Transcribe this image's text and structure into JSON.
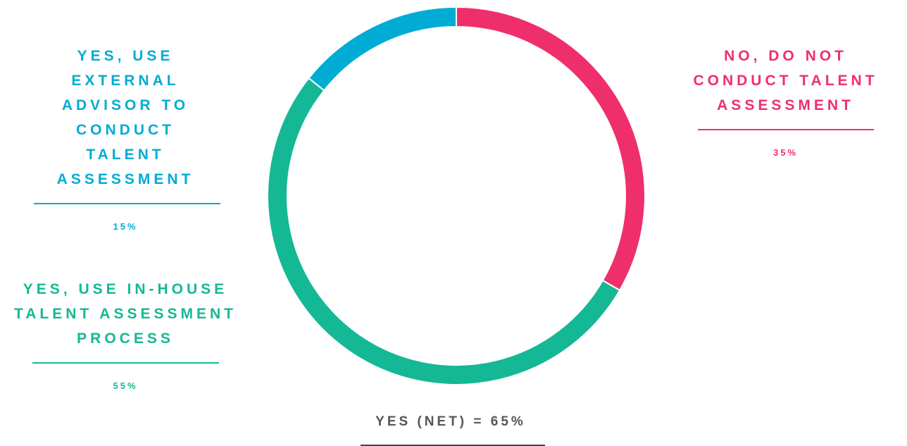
{
  "chart_data": {
    "type": "donut",
    "categories": [
      "NO, DO NOT CONDUCT TALENT ASSESSMENT",
      "YES, USE IN-HOUSE TALENT ASSESSMENT PROCESS",
      "YES, USE EXTERNAL ADVISOR TO CONDUCT TALENT ASSESSMENT"
    ],
    "values": [
      35,
      55,
      15
    ],
    "value_labels": [
      "35%",
      "55%",
      "15%"
    ],
    "colors": [
      "#ef2f6b",
      "#15b895",
      "#00acd4"
    ],
    "annotation": "YES (NET) = 65%"
  }
}
